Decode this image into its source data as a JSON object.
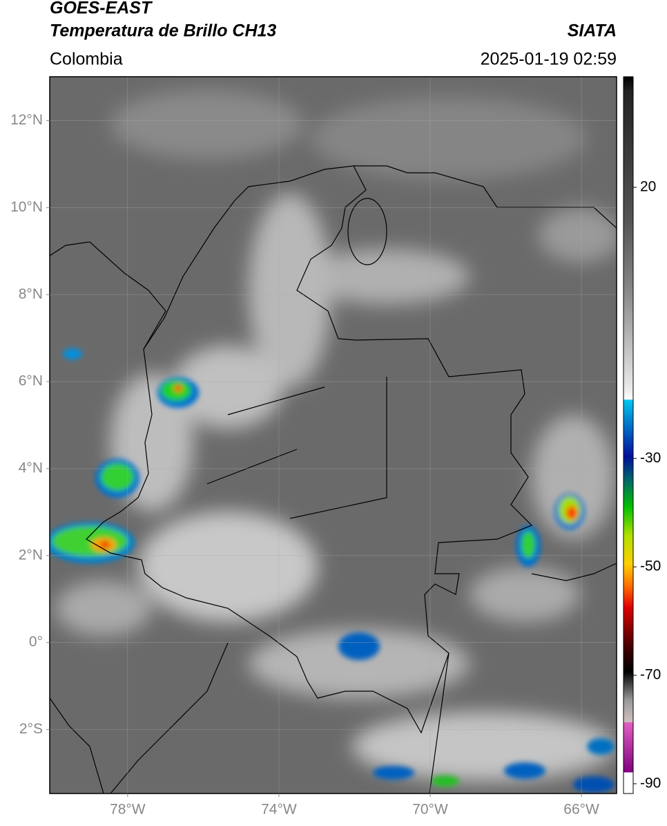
{
  "header": {
    "title": "GOES-EAST",
    "subtitle": "Temperatura de Brillo CH13",
    "source": "SIATA",
    "region": "Colombia",
    "datetime": "2025-01-19 02:59"
  },
  "map": {
    "xlim": [
      -80.06,
      -65.07
    ],
    "ylim": [
      -3.47,
      13.01
    ],
    "xticks": [
      {
        "value": -78,
        "label": "78°W"
      },
      {
        "value": -74,
        "label": "74°W"
      },
      {
        "value": -70,
        "label": "70°W"
      },
      {
        "value": -66,
        "label": "66°W"
      }
    ],
    "yticks": [
      {
        "value": 12,
        "label": "12°N"
      },
      {
        "value": 10,
        "label": "10°N"
      },
      {
        "value": 8,
        "label": "8°N"
      },
      {
        "value": 6,
        "label": "6°N"
      },
      {
        "value": 4,
        "label": "4°N"
      },
      {
        "value": 2,
        "label": "2°N"
      },
      {
        "value": 0,
        "label": "0°"
      },
      {
        "value": -2,
        "label": "2°S"
      }
    ],
    "grid": true
  },
  "colorbar": {
    "lim": [
      -91.8,
      40.4
    ],
    "ticks": [
      20,
      -30,
      -50,
      -70,
      -90
    ]
  }
}
